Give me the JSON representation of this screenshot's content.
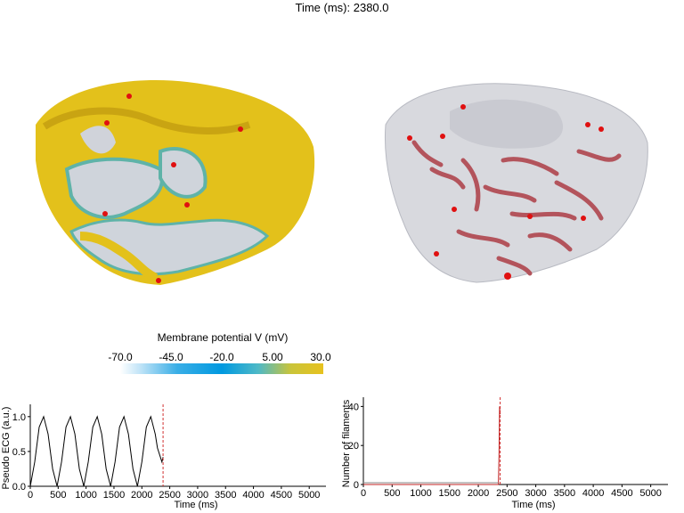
{
  "header": {
    "time_label": "Time (ms): 2380.0"
  },
  "colorbar": {
    "title": "Membrane potential V (mV)",
    "ticks": [
      "-70.0",
      "-45.0",
      "-20.0",
      "5.00",
      "30.0"
    ]
  },
  "colors": {
    "heart_yellow": "#e3c11b",
    "heart_gray": "#d9d9de",
    "filament_red": "#e01010",
    "cursor_red": "#d03030"
  },
  "chart_data": [
    {
      "type": "line",
      "ylabel": "Pseudo ECG (a.u.)",
      "xlabel": "Time (ms)",
      "x_ticks": [
        "0",
        "500",
        "1000",
        "1500",
        "2000",
        "2500",
        "3000",
        "3500",
        "4000",
        "4500",
        "5000"
      ],
      "y_ticks": [
        "0.0",
        "0.5",
        "1.0"
      ],
      "xlim": [
        0,
        5300
      ],
      "ylim": [
        0,
        1.1
      ],
      "cursor_x": 2380,
      "series": [
        {
          "x": [
            0,
            80,
            160,
            240,
            320,
            400,
            480,
            560,
            640,
            720,
            800,
            880,
            960,
            1040,
            1120,
            1200,
            1280,
            1360,
            1440,
            1520,
            1600,
            1680,
            1760,
            1840,
            1920,
            2000,
            2080,
            2160,
            2240,
            2280,
            2320,
            2360,
            2380
          ],
          "y": [
            0.0,
            0.35,
            0.85,
            1.0,
            0.75,
            0.25,
            0.0,
            0.35,
            0.85,
            1.0,
            0.75,
            0.25,
            0.0,
            0.35,
            0.85,
            1.0,
            0.75,
            0.25,
            0.0,
            0.35,
            0.85,
            1.0,
            0.75,
            0.25,
            0.0,
            0.35,
            0.85,
            1.0,
            0.75,
            0.55,
            0.45,
            0.35,
            0.42
          ]
        }
      ]
    },
    {
      "type": "line",
      "ylabel": "Number of filaments",
      "xlabel": "Time (ms)",
      "x_ticks": [
        "0",
        "500",
        "1000",
        "1500",
        "2000",
        "2500",
        "3000",
        "3500",
        "4000",
        "4500",
        "5000"
      ],
      "y_ticks": [
        "0",
        "20",
        "40"
      ],
      "xlim": [
        0,
        5300
      ],
      "ylim": [
        0,
        42
      ],
      "cursor_x": 2380,
      "series": [
        {
          "x": [
            0,
            2300,
            2350,
            2360,
            2370,
            2380
          ],
          "y": [
            0,
            0,
            0,
            15,
            40,
            36
          ]
        }
      ]
    }
  ]
}
